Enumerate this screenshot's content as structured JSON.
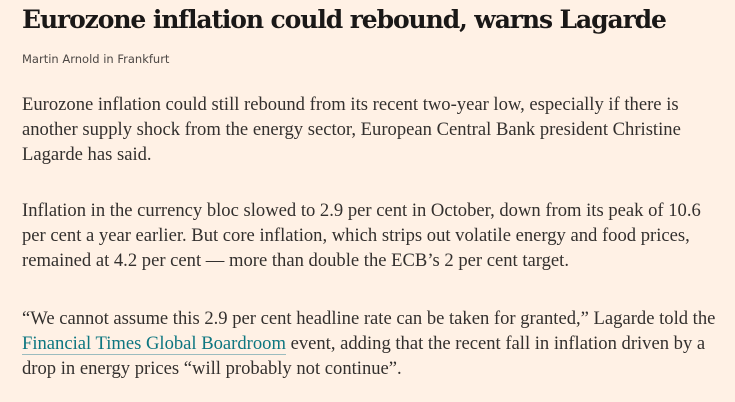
{
  "article": {
    "headline": "Eurozone inflation could rebound, warns Lagarde",
    "byline": "Martin Arnold in Frankfurt",
    "paragraphs": [
      {
        "text": "Eurozone inflation could still rebound from its recent two-year low, especially if there is another supply shock from the energy sector, European Central Bank president Christine Lagarde has said."
      },
      {
        "text": "Inflation in the currency bloc slowed to 2.9 per cent in October, down from its peak of 10.6 per cent a year earlier. But core inflation, which strips out volatile energy and food prices, remained at 4.2 per cent — more than double the ECB’s 2 per cent target."
      },
      {
        "before": "“We cannot assume this 2.9 per cent headline rate can be taken for granted,” Lagarde told the ",
        "link": "Financial Times Global Boardroom",
        "after": " event, adding that the recent fall in inflation driven by a drop in energy prices “will probably not continue”."
      }
    ]
  },
  "colors": {
    "background": "#fff1e5",
    "headline": "#1a1817",
    "body_text": "#33302e",
    "link": "#0d7680"
  }
}
